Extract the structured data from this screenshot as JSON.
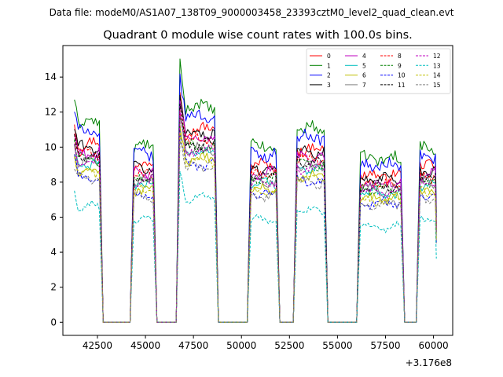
{
  "figure": {
    "suptitle": "Data file: modeM0/AS1A07_138T09_9000003458_23393cztM0_level2_quad_clean.evt"
  },
  "chart_data": {
    "type": "line",
    "title": "Quadrant 0 module wise count rates with 100.0s bins.",
    "xlabel": "",
    "ylabel": "",
    "x_offset_label": "+3.176e8",
    "xlim": [
      40700,
      61000
    ],
    "ylim": [
      -0.75,
      15.8
    ],
    "xticks": [
      42500,
      45000,
      47500,
      50000,
      52500,
      55000,
      57500,
      60000
    ],
    "xtick_labels": [
      "42500",
      "45000",
      "47500",
      "50000",
      "52500",
      "55000",
      "57500",
      "60000"
    ],
    "yticks": [
      0,
      2,
      4,
      6,
      8,
      10,
      12,
      14
    ],
    "ytick_labels": [
      "0",
      "2",
      "4",
      "6",
      "8",
      "10",
      "12",
      "14"
    ],
    "grid": false,
    "legend_position": "top-right",
    "legend_columns": 4,
    "segments": [
      {
        "x_start": 41300,
        "x_end": 42600,
        "level": 1.0
      },
      {
        "x_start": 44400,
        "x_end": 45400,
        "level": 0.88
      },
      {
        "x_start": 46800,
        "x_end": 48600,
        "level": 1.08
      },
      {
        "x_start": 50500,
        "x_end": 51800,
        "level": 0.88
      },
      {
        "x_start": 52900,
        "x_end": 54300,
        "level": 0.97
      },
      {
        "x_start": 56200,
        "x_end": 58300,
        "level": 0.82
      },
      {
        "x_start": 59300,
        "x_end": 60100,
        "level": 0.87
      }
    ],
    "series": [
      {
        "name": "0",
        "color": "#ff0000",
        "dash": "solid",
        "base": 10.2,
        "start": 11.5
      },
      {
        "name": "1",
        "color": "#008000",
        "dash": "solid",
        "base": 11.4,
        "start": 13.0
      },
      {
        "name": "2",
        "color": "#0000ff",
        "dash": "solid",
        "base": 10.9,
        "start": 12.2
      },
      {
        "name": "3",
        "color": "#000000",
        "dash": "solid",
        "base": 10.0,
        "start": 11.0
      },
      {
        "name": "4",
        "color": "#bf00bf",
        "dash": "solid",
        "base": 9.7,
        "start": 10.6
      },
      {
        "name": "5",
        "color": "#00bfbf",
        "dash": "solid",
        "base": 9.0,
        "start": 10.0
      },
      {
        "name": "6",
        "color": "#bfbf00",
        "dash": "solid",
        "base": 8.6,
        "start": 9.6
      },
      {
        "name": "7",
        "color": "#808080",
        "dash": "solid",
        "base": 9.2,
        "start": 10.2
      },
      {
        "name": "8",
        "color": "#ff0000",
        "dash": "dashed",
        "base": 9.6,
        "start": 10.8
      },
      {
        "name": "9",
        "color": "#008000",
        "dash": "dashed",
        "base": 9.3,
        "start": 10.3
      },
      {
        "name": "10",
        "color": "#0000ff",
        "dash": "dashed",
        "base": 8.3,
        "start": 9.3
      },
      {
        "name": "11",
        "color": "#000000",
        "dash": "dashed",
        "base": 9.4,
        "start": 10.4
      },
      {
        "name": "12",
        "color": "#bf00bf",
        "dash": "dashed",
        "base": 9.1,
        "start": 10.0
      },
      {
        "name": "13",
        "color": "#00bfbf",
        "dash": "dashed",
        "base": 6.6,
        "start": 7.5
      },
      {
        "name": "14",
        "color": "#bfbf00",
        "dash": "dashed",
        "base": 8.5,
        "start": 9.4
      },
      {
        "name": "15",
        "color": "#808080",
        "dash": "dashed",
        "base": 8.2,
        "start": 9.0
      }
    ]
  }
}
